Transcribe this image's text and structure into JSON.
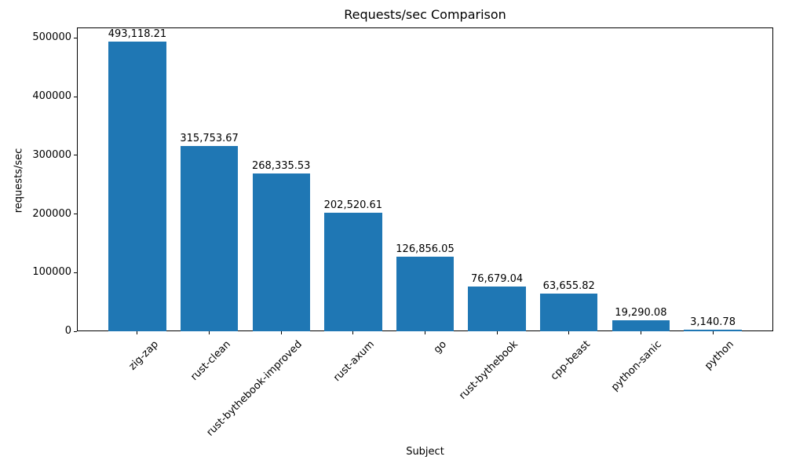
{
  "chart_data": {
    "type": "bar",
    "title": "Requests/sec Comparison",
    "xlabel": "Subject",
    "ylabel": "requests/sec",
    "categories": [
      "zig-zap",
      "rust-clean",
      "rust-bythebook-improved",
      "rust-axum",
      "go",
      "rust-bythebook",
      "cpp-beast",
      "python-sanic",
      "python"
    ],
    "values": [
      493118.21,
      315753.67,
      268335.53,
      202520.61,
      126856.05,
      76679.04,
      63655.82,
      19290.08,
      3140.78
    ],
    "value_labels": [
      "493,118.21",
      "315,753.67",
      "268,335.53",
      "202,520.61",
      "126,856.05",
      "76,679.04",
      "63,655.82",
      "19,290.08",
      "3,140.78"
    ],
    "yticks": [
      0,
      100000,
      200000,
      300000,
      400000,
      500000
    ],
    "ytick_labels": [
      "0",
      "100000",
      "200000",
      "300000",
      "400000",
      "500000"
    ],
    "ylim": [
      0,
      517774
    ],
    "bar_color": "#1f77b4",
    "axis_color": "#000000",
    "text_color": "#000000",
    "background_color": "#ffffff",
    "grid": false,
    "legend": null,
    "x_tick_rotation_deg": 45
  }
}
